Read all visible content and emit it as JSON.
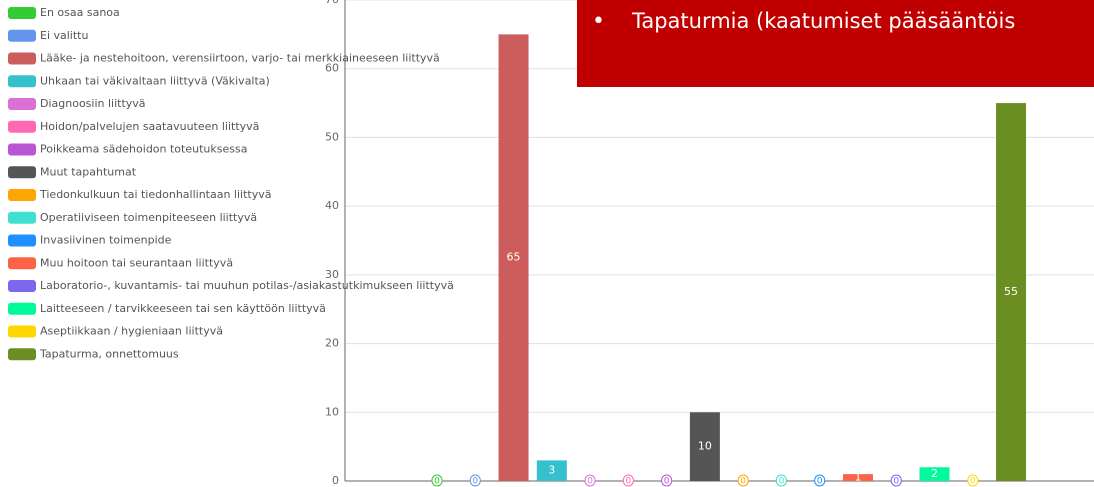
{
  "chart_data": {
    "type": "bar",
    "annotation": "Tapaturmia (kaatumiset pääsääntöis",
    "categories": [
      "En osaa sanoa",
      "Ei valittu",
      "Lääke- ja nestehoitoon, verensiirtoon, varjo- tai merkkiaineeseen liittyvä",
      "Uhkaan tai väkivaltaan liittyvä (Väkivalta)",
      "Diagnoosiin liittyvä",
      "Hoidon/palvelujen saatavuuteen liittyvä",
      "Poikkeama sädehoidon toteutuksessa",
      "Muut tapahtumat",
      "Tiedonkulkuun tai tiedonhallintaan liittyvä",
      "Operatiiviseen toimenpiteeseen liittyvä",
      "Invasiivinen toimenpide",
      "Muu hoitoon tai seurantaan liittyvä",
      "Laboratorio-, kuvantamis- tai muuhun potilas-/asiakastutkimukseen liittyvä",
      "Laitteeseen / tarvikkeeseen tai sen käyttöön liittyvä",
      "Aseptiikkaan / hygieniaan liittyvä",
      "Tapaturma, onnettomuus"
    ],
    "values": [
      0,
      0,
      65,
      3,
      0,
      0,
      0,
      10,
      0,
      0,
      0,
      1,
      0,
      2,
      0,
      55
    ],
    "colors": [
      "#33cc33",
      "#6495ed",
      "#cd5c5c",
      "#35c0cd",
      "#da70d6",
      "#ff69b4",
      "#ba55d3",
      "#555555",
      "#ffa500",
      "#40e0d0",
      "#1e90ff",
      "#ff6347",
      "#7b68ee",
      "#00fa9a",
      "#ffd700",
      "#6b8e23"
    ],
    "ylim": [
      0,
      70
    ],
    "yticks": [
      0,
      10,
      20,
      30,
      40,
      50,
      60,
      70
    ],
    "grid": true,
    "legend": "left"
  }
}
